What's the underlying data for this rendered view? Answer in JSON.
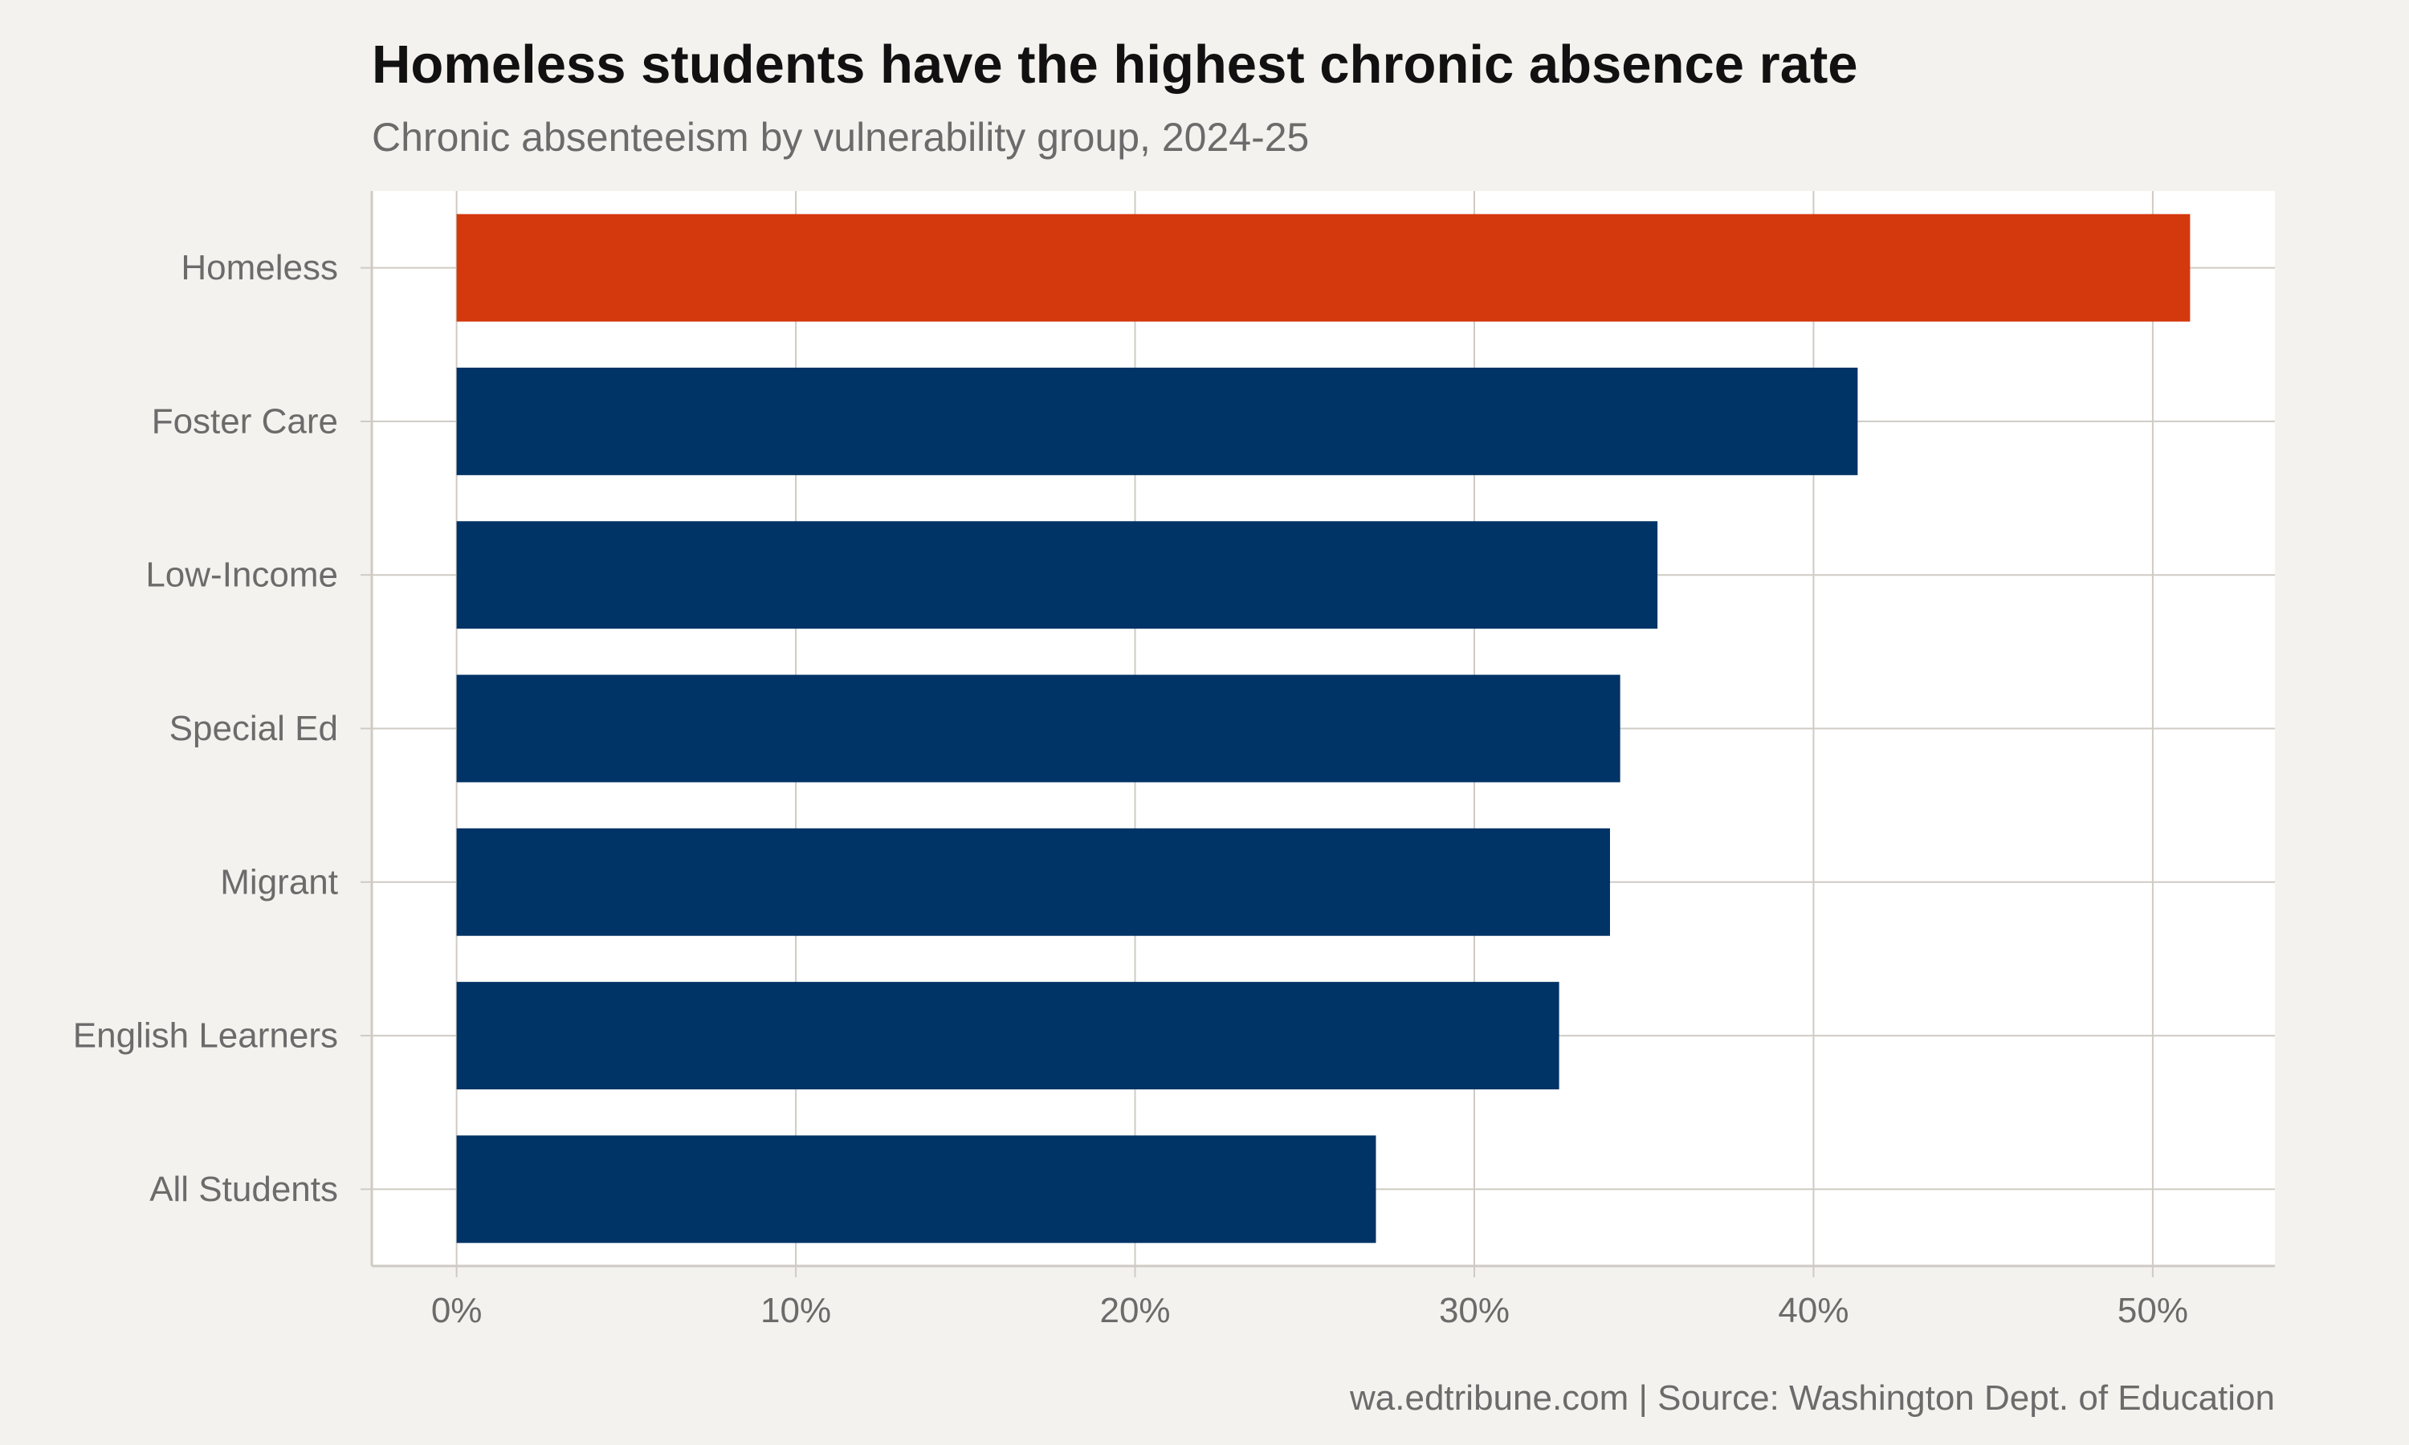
{
  "chart_data": {
    "type": "bar",
    "orientation": "horizontal",
    "title": "Homeless students have the highest chronic absence rate",
    "subtitle": "Chronic absenteeism by vulnerability group, 2024-25",
    "caption": "wa.edtribune.com | Source: Washington Dept. of Education",
    "categories": [
      "Homeless",
      "Foster Care",
      "Low-Income",
      "Special Ed",
      "Migrant",
      "English Learners",
      "All Students"
    ],
    "values": [
      51.1,
      41.3,
      35.4,
      34.3,
      34.0,
      32.5,
      27.1
    ],
    "highlight": "Homeless",
    "xlim": [
      -2.5,
      53.6
    ],
    "x_ticks": [
      0,
      10,
      20,
      30,
      40,
      50
    ],
    "x_tick_labels": [
      "0%",
      "10%",
      "20%",
      "30%",
      "40%",
      "50%"
    ],
    "xlabel": "",
    "ylabel": "",
    "grid": true,
    "legend": "none",
    "colors": {
      "highlight": "#d4380d",
      "default": "#003366",
      "panel": "#ffffff",
      "background": "#f4f2ee",
      "grid": "#cfcbc4",
      "text": "#6b6b6b"
    }
  }
}
